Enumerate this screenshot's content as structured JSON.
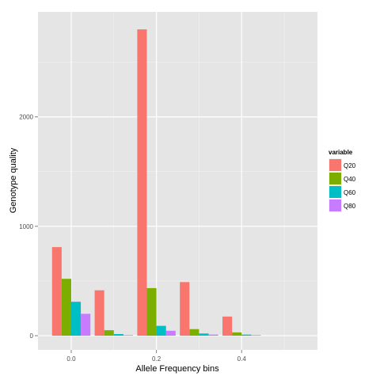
{
  "chart_data": {
    "type": "bar",
    "xlabel": "Allele Frequency bins",
    "ylabel": "Genotype quality",
    "x_ticks": [
      "0.0",
      "0.2",
      "0.4"
    ],
    "y_ticks": [
      "0",
      "1000",
      "2000"
    ],
    "xlim": [
      -0.078,
      0.578
    ],
    "ylim": [
      -130,
      2960
    ],
    "grid": true,
    "legend_position": "right",
    "legend_title": "variable",
    "bin_centers": [
      0.0,
      0.1,
      0.2,
      0.3,
      0.4,
      0.5
    ],
    "bar_group_width": 0.09,
    "series": [
      {
        "name": "Q20",
        "color": "#F8766D",
        "values": [
          810,
          415,
          2800,
          490,
          175,
          0
        ]
      },
      {
        "name": "Q40",
        "color": "#7CAE00",
        "values": [
          520,
          50,
          435,
          60,
          30,
          0
        ]
      },
      {
        "name": "Q60",
        "color": "#00BFC4",
        "values": [
          310,
          15,
          90,
          20,
          10,
          0
        ]
      },
      {
        "name": "Q80",
        "color": "#C77CFF",
        "values": [
          200,
          5,
          45,
          10,
          5,
          0
        ]
      }
    ]
  }
}
